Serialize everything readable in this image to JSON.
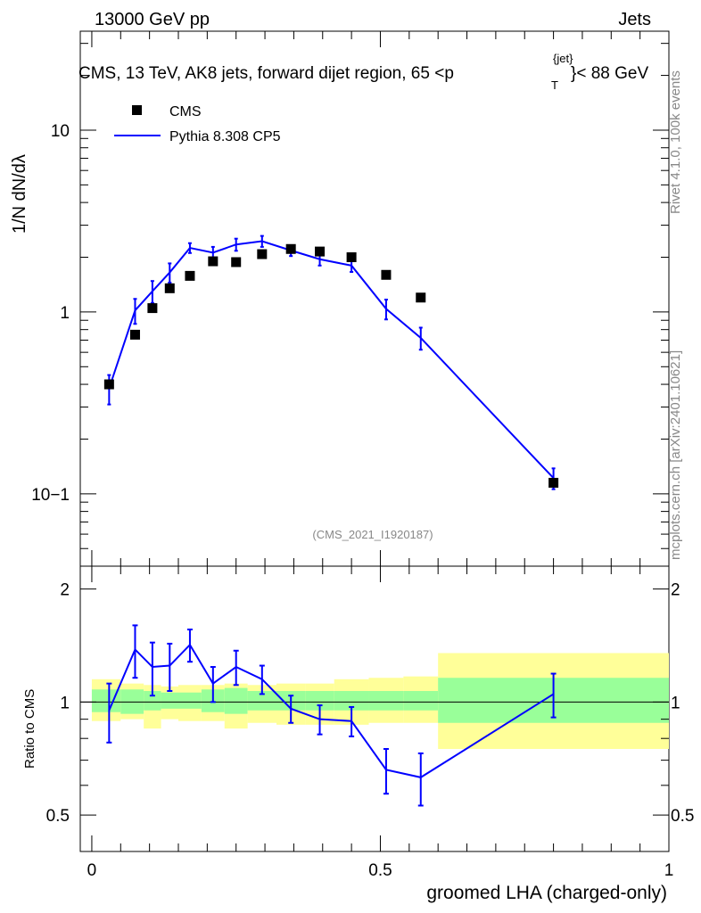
{
  "header": {
    "left": "13000 GeV pp",
    "right": "Jets"
  },
  "title": "CMS, 13 TeV, AK8 jets, forward dijet region, 65 <p",
  "title_sup": "{jet}",
  "title_sub": "T",
  "title_end": "}< 88 GeV",
  "side_label_top": "Rivet 4.1.0,  100k events",
  "side_label_bottom": "mcplots.cern.ch [arXiv:2401.10621]",
  "watermark": "(CMS_2021_I1920187)",
  "legend": {
    "data_label": "CMS",
    "mc_label": "Pythia 8.308 CP5"
  },
  "ylabel_main": "1/N dN/dλ",
  "ylabel_ratio": "Ratio to CMS",
  "xlabel": "groomed LHA (charged-only)",
  "ticks": {
    "main_y": [
      "10−1",
      "1",
      "10"
    ],
    "ratio_y": [
      "0.5",
      "1",
      "2"
    ],
    "x": [
      "0",
      "0.5",
      "1"
    ]
  },
  "colors": {
    "data": "#000000",
    "mc": "#0000ff",
    "band_inner": "#99ff99",
    "band_outer": "#ffff99"
  },
  "chart_data": {
    "type": "scatter",
    "x": [
      0.03,
      0.075,
      0.105,
      0.135,
      0.17,
      0.21,
      0.25,
      0.295,
      0.345,
      0.395,
      0.45,
      0.51,
      0.57,
      0.8
    ],
    "data_values": [
      0.4,
      0.75,
      1.05,
      1.35,
      1.58,
      1.9,
      1.88,
      2.08,
      2.22,
      2.15,
      2.0,
      1.6,
      1.2,
      0.115
    ],
    "mc_values": [
      0.38,
      1.02,
      1.3,
      1.65,
      2.25,
      2.12,
      2.35,
      2.45,
      2.18,
      1.95,
      1.8,
      1.04,
      0.72,
      0.122
    ],
    "mc_errors": [
      0.07,
      0.16,
      0.18,
      0.2,
      0.14,
      0.16,
      0.18,
      0.17,
      0.15,
      0.15,
      0.14,
      0.13,
      0.1,
      0.016
    ],
    "ratio_values": [
      0.95,
      1.38,
      1.24,
      1.25,
      1.42,
      1.12,
      1.24,
      1.15,
      0.96,
      0.9,
      0.89,
      0.66,
      0.63,
      1.05
    ],
    "ratio_errors": [
      0.17,
      0.22,
      0.2,
      0.18,
      0.14,
      0.12,
      0.13,
      0.1,
      0.08,
      0.08,
      0.08,
      0.09,
      0.1,
      0.14
    ],
    "band_edges": [
      0.0,
      0.05,
      0.09,
      0.12,
      0.15,
      0.19,
      0.23,
      0.27,
      0.32,
      0.37,
      0.42,
      0.48,
      0.54,
      0.6,
      1.0
    ],
    "band_inner": [
      [
        0.94,
        1.08
      ],
      [
        0.93,
        1.08
      ],
      [
        0.95,
        1.07
      ],
      [
        0.96,
        1.06
      ],
      [
        0.96,
        1.06
      ],
      [
        0.94,
        1.08
      ],
      [
        0.93,
        1.09
      ],
      [
        0.95,
        1.07
      ],
      [
        0.95,
        1.07
      ],
      [
        0.95,
        1.07
      ],
      [
        0.95,
        1.07
      ],
      [
        0.95,
        1.07
      ],
      [
        0.95,
        1.07
      ],
      [
        0.88,
        1.16
      ]
    ],
    "band_outer": [
      [
        0.89,
        1.15
      ],
      [
        0.9,
        1.12
      ],
      [
        0.85,
        1.11
      ],
      [
        0.9,
        1.1
      ],
      [
        0.89,
        1.11
      ],
      [
        0.89,
        1.11
      ],
      [
        0.85,
        1.12
      ],
      [
        0.88,
        1.11
      ],
      [
        0.87,
        1.12
      ],
      [
        0.87,
        1.12
      ],
      [
        0.87,
        1.15
      ],
      [
        0.88,
        1.16
      ],
      [
        0.88,
        1.17
      ],
      [
        0.75,
        1.35
      ]
    ],
    "xlim": [
      -0.02,
      1.0
    ],
    "ylim_main": [
      0.04,
      35
    ],
    "ylim_ratio": [
      0.4,
      2.3
    ],
    "xlabel": "groomed LHA (charged-only)",
    "ylabel": "1/N dN/dλ",
    "ratio_ylabel": "Ratio to CMS",
    "series": [
      {
        "name": "CMS",
        "values": [
          0.4,
          0.75,
          1.05,
          1.35,
          1.58,
          1.9,
          1.88,
          2.08,
          2.22,
          2.15,
          2.0,
          1.6,
          1.2,
          0.115
        ]
      },
      {
        "name": "Pythia 8.308 CP5",
        "values": [
          0.38,
          1.02,
          1.3,
          1.65,
          2.25,
          2.12,
          2.35,
          2.45,
          2.18,
          1.95,
          1.8,
          1.04,
          0.72,
          0.122
        ]
      }
    ]
  }
}
